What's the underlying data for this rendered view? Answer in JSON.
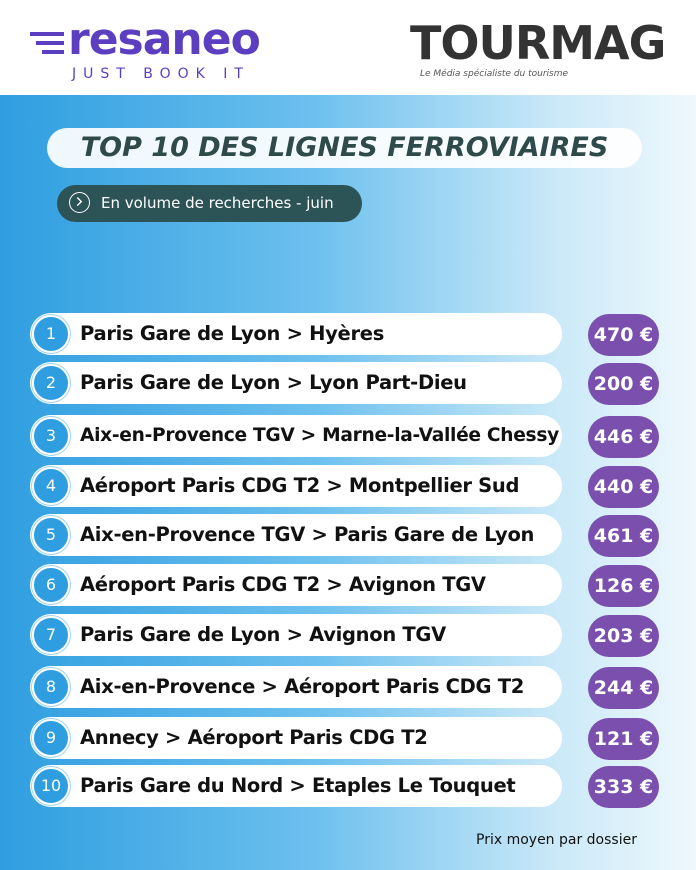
{
  "header": {
    "left_logo": "resaneo",
    "left_tagline": "JUST BOOK IT",
    "right_logo": "TOURMAG",
    "right_tagline": "Le Média spécialiste du tourisme"
  },
  "title": "TOP 10 DES LIGNES FERROVIAIRES",
  "subtitle": "En volume de recherches - juin",
  "rows": [
    {
      "rank": 1,
      "route": "Paris Gare de Lyon > Hyères",
      "price": "470 €"
    },
    {
      "rank": 2,
      "route": "Paris Gare de Lyon > Lyon Part-Dieu",
      "price": "200 €"
    },
    {
      "rank": 3,
      "route": "Aix-en-Provence TGV > Marne-la-Vallée Chessy",
      "price": "446 €"
    },
    {
      "rank": 4,
      "route": "Aéroport Paris CDG T2 > Montpellier Sud",
      "price": "440 €"
    },
    {
      "rank": 5,
      "route": "Aix-en-Provence TGV > Paris Gare de Lyon",
      "price": "461 €"
    },
    {
      "rank": 6,
      "route": "Aéroport Paris CDG T2 > Avignon TGV",
      "price": "126 €"
    },
    {
      "rank": 7,
      "route": "Paris Gare de Lyon > Avignon TGV",
      "price": "203 €"
    },
    {
      "rank": 8,
      "route": "Aix-en-Provence > Aéroport Paris CDG T2",
      "price": "244 €"
    },
    {
      "rank": 9,
      "route": "Annecy > Aéroport Paris CDG T2",
      "price": "121 €"
    },
    {
      "rank": 10,
      "route": "Paris Gare du Nord > Etaples Le Touquet",
      "price": "333 €"
    }
  ],
  "footnote": "Prix moyen par dossier"
}
